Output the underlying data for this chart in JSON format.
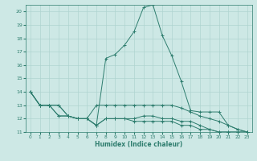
{
  "xlabel": "Humidex (Indice chaleur)",
  "x": [
    0,
    1,
    2,
    3,
    4,
    5,
    6,
    7,
    8,
    9,
    10,
    11,
    12,
    13,
    14,
    15,
    16,
    17,
    18,
    19,
    20,
    21,
    22,
    23
  ],
  "series": [
    [
      14.0,
      13.0,
      13.0,
      13.0,
      12.2,
      12.0,
      12.0,
      11.5,
      16.5,
      16.8,
      17.5,
      18.5,
      20.3,
      20.5,
      18.2,
      16.7,
      14.8,
      12.6,
      12.5,
      12.5,
      12.5,
      11.5,
      11.2,
      11.0
    ],
    [
      14.0,
      13.0,
      13.0,
      13.0,
      12.2,
      12.0,
      12.0,
      13.0,
      13.0,
      13.0,
      13.0,
      13.0,
      13.0,
      13.0,
      13.0,
      13.0,
      12.8,
      12.5,
      12.2,
      12.0,
      11.8,
      11.5,
      11.2,
      11.0
    ],
    [
      14.0,
      13.0,
      13.0,
      12.2,
      12.2,
      12.0,
      12.0,
      11.5,
      12.0,
      12.0,
      12.0,
      12.0,
      12.2,
      12.2,
      12.0,
      12.0,
      11.8,
      11.8,
      11.5,
      11.2,
      11.0,
      11.0,
      11.0,
      11.0
    ],
    [
      14.0,
      13.0,
      13.0,
      12.2,
      12.2,
      12.0,
      12.0,
      11.5,
      12.0,
      12.0,
      12.0,
      11.8,
      11.8,
      11.8,
      11.8,
      11.8,
      11.5,
      11.5,
      11.2,
      11.2,
      11.0,
      11.0,
      11.0,
      11.0
    ]
  ],
  "line_color": "#2e7d6e",
  "bg_color": "#cde8e5",
  "grid_color": "#afd4d0",
  "ylim": [
    11,
    20.5
  ],
  "yticks": [
    11,
    12,
    13,
    14,
    15,
    16,
    17,
    18,
    19,
    20
  ],
  "xticks": [
    0,
    1,
    2,
    3,
    4,
    5,
    6,
    7,
    8,
    9,
    10,
    11,
    12,
    13,
    14,
    15,
    16,
    17,
    18,
    19,
    20,
    21,
    22,
    23
  ]
}
